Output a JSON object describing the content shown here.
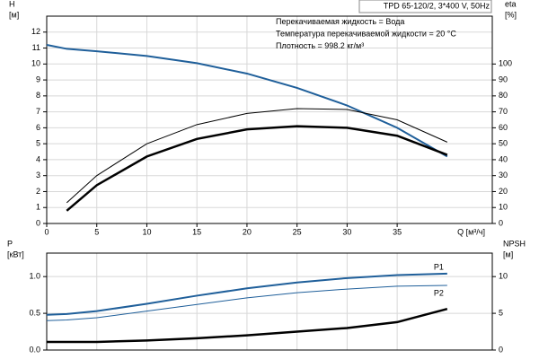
{
  "chart_data": [
    {
      "type": "line",
      "annotations": [
        "TPD 65-120/2, 3*400 V, 50Hz",
        "Перекачиваемая жидкость = Вода",
        "Температура перекачиваемой жидкости = 20 °C",
        "Плотность = 998.2 кг/м³"
      ],
      "ylabel": "H",
      "yunit": "[м]",
      "y2label": "eta",
      "y2unit": "[%]",
      "xlabel": "Q [м³/ч]",
      "x": [
        0,
        2,
        5,
        10,
        15,
        20,
        25,
        30,
        35,
        40
      ],
      "xlim": [
        0,
        44.5
      ],
      "xticks": [
        0,
        5,
        10,
        15,
        20,
        25,
        30,
        35
      ],
      "ylim": [
        0,
        13
      ],
      "yticks": [
        0,
        1,
        2,
        3,
        4,
        5,
        6,
        7,
        8,
        9,
        10,
        11,
        12
      ],
      "y2lim": [
        0,
        130
      ],
      "y2ticks": [
        0,
        10,
        20,
        30,
        40,
        50,
        60,
        70,
        80,
        90,
        100
      ],
      "grid": true,
      "series": [
        {
          "color": "#1f5f9a",
          "width": 2,
          "values": [
            11.2,
            10.95,
            10.8,
            10.5,
            10.05,
            9.4,
            8.5,
            7.4,
            6.0,
            4.2
          ]
        },
        {
          "color": "#000000",
          "width": 1,
          "axis": "y2",
          "values": [
            null,
            13,
            30,
            50,
            62,
            69,
            72,
            71.5,
            65,
            51
          ]
        },
        {
          "color": "#000000",
          "width": 2.5,
          "axis": "y2",
          "values": [
            null,
            8,
            24,
            42,
            53,
            59,
            61,
            60,
            55,
            43
          ]
        }
      ]
    },
    {
      "type": "line",
      "ylabel": "P",
      "yunit": "[кВт]",
      "y2label": "NPSH",
      "y2unit": "[м]",
      "x": [
        0,
        2,
        5,
        10,
        15,
        20,
        25,
        30,
        35,
        40
      ],
      "xlim": [
        0,
        44.5
      ],
      "ylim": [
        0,
        1.32
      ],
      "yticks": [
        {
          "value": 0,
          "label": "0.0"
        },
        {
          "value": 0.5,
          "label": "0.5"
        },
        {
          "value": 1.0,
          "label": "1.0"
        }
      ],
      "y2lim": [
        0,
        13.2
      ],
      "y2ticks": [
        0,
        5,
        10
      ],
      "grid": true,
      "series": [
        {
          "name": "P1",
          "color": "#1f5f9a",
          "width": 2,
          "values": [
            0.48,
            0.49,
            0.53,
            0.63,
            0.74,
            0.84,
            0.92,
            0.98,
            1.02,
            1.04
          ]
        },
        {
          "name": "P2",
          "color": "#1f5f9a",
          "width": 1,
          "values": [
            0.4,
            0.41,
            0.44,
            0.53,
            0.62,
            0.71,
            0.78,
            0.83,
            0.87,
            0.88
          ]
        },
        {
          "color": "#000000",
          "width": 2.5,
          "axis": "y2",
          "values": [
            1.1,
            1.1,
            1.1,
            1.3,
            1.6,
            2.0,
            2.5,
            3.0,
            3.8,
            5.6
          ]
        }
      ]
    }
  ]
}
